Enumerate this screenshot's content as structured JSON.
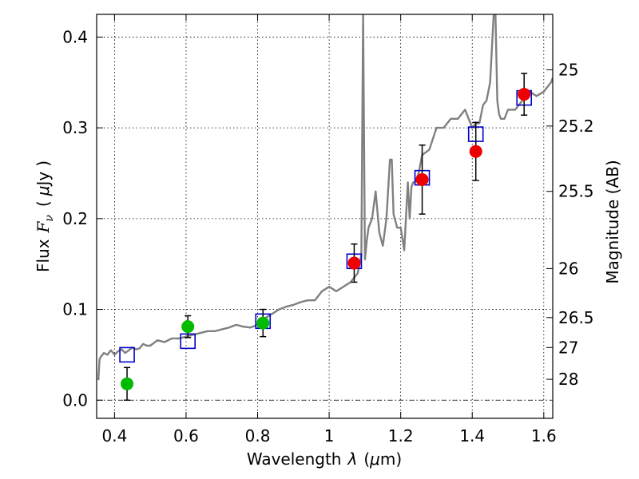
{
  "chart_data": {
    "type": "scatter",
    "xlabel_parts": [
      "Wavelength",
      "λ",
      "(",
      "μ",
      "m)"
    ],
    "ylabel_parts": [
      "Flux",
      "F",
      "ν",
      "(",
      "μ",
      "Jy",
      ")"
    ],
    "right_ylabel": "Magnitude (AB)",
    "xlim": [
      0.35,
      1.625
    ],
    "ylim": [
      -0.02,
      0.425
    ],
    "x_ticks": [
      {
        "value": 0.4,
        "label": "0.4"
      },
      {
        "value": 0.6,
        "label": "0.6"
      },
      {
        "value": 0.8,
        "label": "0.8"
      },
      {
        "value": 1.0,
        "label": "1"
      },
      {
        "value": 1.2,
        "label": "1.2"
      },
      {
        "value": 1.4,
        "label": "1.4"
      },
      {
        "value": 1.6,
        "label": "1.6"
      }
    ],
    "y_ticks": [
      {
        "value": 0.0,
        "label": "0.0"
      },
      {
        "value": 0.1,
        "label": "0.1"
      },
      {
        "value": 0.2,
        "label": "0.2"
      },
      {
        "value": 0.3,
        "label": "0.3"
      },
      {
        "value": 0.4,
        "label": "0.4"
      }
    ],
    "right_ticks": [
      {
        "flux": 0.364,
        "label": "25"
      },
      {
        "flux": 0.302,
        "label": "25.2"
      },
      {
        "flux": 0.23,
        "label": "25.5"
      },
      {
        "flux": 0.145,
        "label": "26"
      },
      {
        "flux": 0.091,
        "label": "26.5"
      },
      {
        "flux": 0.058,
        "label": "27"
      },
      {
        "flux": 0.023,
        "label": "28"
      }
    ],
    "grid": true,
    "model_spectrum": {
      "color": "#808080",
      "x": [
        0.355,
        0.358,
        0.362,
        0.37,
        0.38,
        0.39,
        0.4,
        0.41,
        0.42,
        0.43,
        0.44,
        0.45,
        0.46,
        0.47,
        0.48,
        0.49,
        0.5,
        0.52,
        0.54,
        0.56,
        0.58,
        0.6,
        0.62,
        0.64,
        0.66,
        0.68,
        0.7,
        0.72,
        0.74,
        0.76,
        0.78,
        0.8,
        0.82,
        0.84,
        0.86,
        0.88,
        0.9,
        0.92,
        0.94,
        0.96,
        0.98,
        1.0,
        1.02,
        1.04,
        1.06,
        1.08,
        1.09,
        1.095,
        1.1,
        1.105,
        1.11,
        1.12,
        1.13,
        1.14,
        1.15,
        1.16,
        1.17,
        1.175,
        1.18,
        1.19,
        1.2,
        1.21,
        1.22,
        1.225,
        1.23,
        1.235,
        1.24,
        1.25,
        1.26,
        1.28,
        1.3,
        1.32,
        1.34,
        1.36,
        1.38,
        1.4,
        1.41,
        1.42,
        1.43,
        1.44,
        1.45,
        1.46,
        1.465,
        1.47,
        1.475,
        1.48,
        1.49,
        1.5,
        1.52,
        1.54,
        1.56,
        1.58,
        1.6,
        1.62,
        1.625
      ],
      "y": [
        0.022,
        0.045,
        0.048,
        0.052,
        0.05,
        0.055,
        0.05,
        0.054,
        0.056,
        0.052,
        0.055,
        0.058,
        0.056,
        0.057,
        0.062,
        0.06,
        0.06,
        0.066,
        0.064,
        0.068,
        0.068,
        0.07,
        0.072,
        0.074,
        0.076,
        0.076,
        0.078,
        0.08,
        0.083,
        0.081,
        0.08,
        0.083,
        0.09,
        0.095,
        0.1,
        0.103,
        0.105,
        0.108,
        0.11,
        0.11,
        0.12,
        0.125,
        0.12,
        0.125,
        0.13,
        0.14,
        0.16,
        0.425,
        0.155,
        0.175,
        0.19,
        0.2,
        0.23,
        0.185,
        0.17,
        0.2,
        0.265,
        0.265,
        0.205,
        0.19,
        0.19,
        0.165,
        0.24,
        0.2,
        0.235,
        0.24,
        0.24,
        0.25,
        0.27,
        0.276,
        0.3,
        0.3,
        0.31,
        0.31,
        0.32,
        0.3,
        0.305,
        0.305,
        0.325,
        0.33,
        0.35,
        0.425,
        0.425,
        0.33,
        0.315,
        0.31,
        0.31,
        0.32,
        0.32,
        0.33,
        0.34,
        0.335,
        0.34,
        0.35,
        0.355
      ]
    },
    "series": [
      {
        "marker": "square-open",
        "color": "#0000cc",
        "points": [
          {
            "x": 0.435,
            "y": 0.05
          },
          {
            "x": 0.605,
            "y": 0.065
          },
          {
            "x": 0.815,
            "y": 0.087
          },
          {
            "x": 1.07,
            "y": 0.153
          },
          {
            "x": 1.26,
            "y": 0.245
          },
          {
            "x": 1.41,
            "y": 0.293
          },
          {
            "x": 1.545,
            "y": 0.333
          }
        ]
      },
      {
        "marker": "circle",
        "color": "#00bb00",
        "points": [
          {
            "x": 0.435,
            "y": 0.018,
            "err": 0.018
          },
          {
            "x": 0.605,
            "y": 0.081,
            "err": 0.012
          },
          {
            "x": 0.815,
            "y": 0.085,
            "err": 0.015
          }
        ]
      },
      {
        "marker": "circle",
        "color": "#ee0000",
        "points": [
          {
            "x": 1.07,
            "y": 0.151,
            "err": 0.021
          },
          {
            "x": 1.26,
            "y": 0.243,
            "err": 0.038
          },
          {
            "x": 1.41,
            "y": 0.274,
            "err": 0.032
          },
          {
            "x": 1.545,
            "y": 0.337,
            "err": 0.023
          }
        ]
      }
    ]
  }
}
